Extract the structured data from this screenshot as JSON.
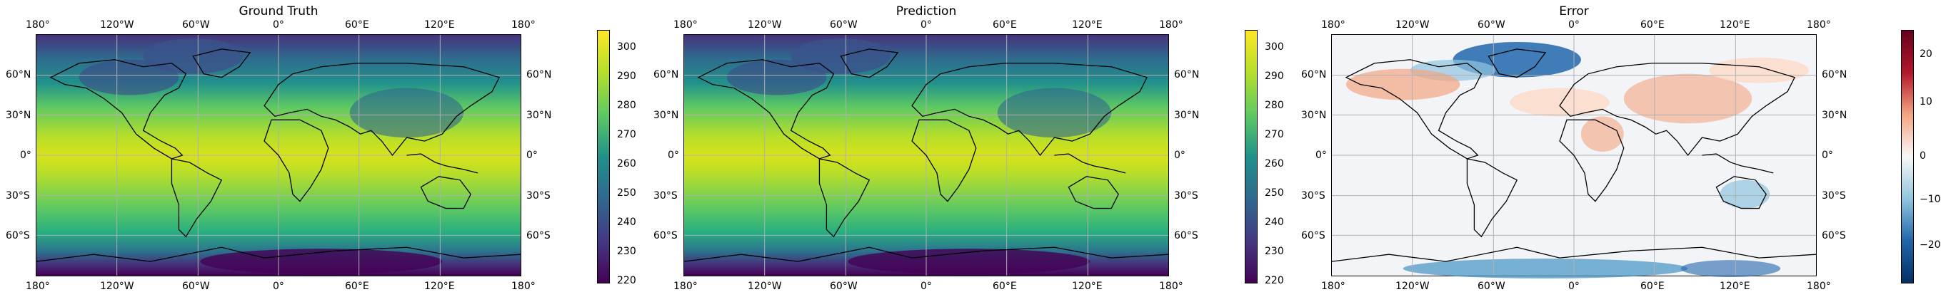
{
  "panels": [
    {
      "title": "Ground Truth",
      "top_lon": [
        "180°",
        "120°W",
        "60°W",
        "0°",
        "60°E",
        "120°E",
        "180°"
      ],
      "bottom_lon": [
        "180°",
        "120°W",
        "60°W",
        "0°",
        "60°E",
        "120°E",
        "180°"
      ],
      "left_lat": [
        "60°N",
        "30°N",
        "0°",
        "30°S",
        "60°S"
      ],
      "right_lat": [
        "60°N",
        "30°N",
        "0°",
        "30°S",
        "60°S"
      ],
      "colormap": "viridis",
      "colorbar_ticks": [
        "300",
        "290",
        "280",
        "270",
        "260",
        "250",
        "240",
        "230",
        "220"
      ]
    },
    {
      "title": "Prediction",
      "top_lon": [
        "180°",
        "120°W",
        "60°W",
        "0°",
        "60°E",
        "120°E",
        "180°"
      ],
      "bottom_lon": [
        "180°",
        "120°W",
        "60°W",
        "0°",
        "60°E",
        "120°E",
        "180°"
      ],
      "left_lat": [
        "60°N",
        "30°N",
        "0°",
        "30°S",
        "60°S"
      ],
      "right_lat": [
        "60°N",
        "30°N",
        "0°",
        "30°S",
        "60°S"
      ],
      "colormap": "viridis",
      "colorbar_ticks": [
        "300",
        "290",
        "280",
        "270",
        "260",
        "250",
        "240",
        "230",
        "220"
      ]
    },
    {
      "title": "Error",
      "top_lon": [
        "180°",
        "120°W",
        "60°W",
        "0°",
        "60°E",
        "120°E",
        "180°"
      ],
      "bottom_lon": [
        "180°",
        "120°W",
        "60°W",
        "0°",
        "60°E",
        "120°E",
        "180°"
      ],
      "left_lat": [
        "60°N",
        "30°N",
        "0°",
        "30°S",
        "60°S"
      ],
      "right_lat": [
        "60°N",
        "30°N",
        "0°",
        "30°S",
        "60°S"
      ],
      "colormap": "RdBu_r",
      "colorbar_ticks": [
        "20",
        "10",
        "0",
        "−10",
        "−20"
      ]
    }
  ],
  "colors": {
    "viridis": [
      "#440154",
      "#3b528b",
      "#21918c",
      "#5ec962",
      "#fde725"
    ],
    "rdbu": [
      "#053061",
      "#2166ac",
      "#92c5de",
      "#f7f7f7",
      "#f4a582",
      "#b2182b",
      "#67001f"
    ],
    "coastline": "#000000",
    "gridline": "#b0b0b0"
  }
}
